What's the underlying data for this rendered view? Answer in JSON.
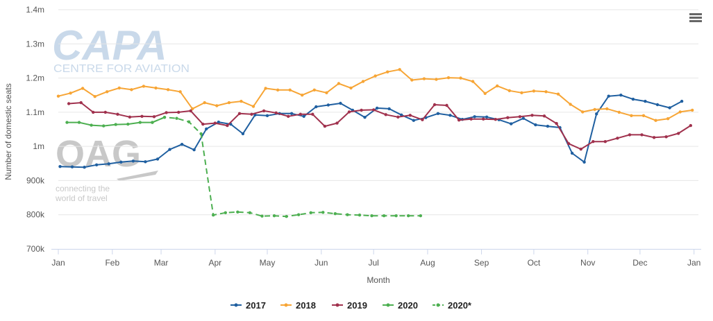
{
  "menu_icon": "hamburger-menu-icon",
  "watermarks": {
    "capa": {
      "logo": "CAPA",
      "subtitle": "CENTRE FOR AVIATION",
      "color": "#c9d9ea"
    },
    "oag": {
      "logo": "OAG",
      "tagline_1": "connecting the",
      "tagline_2": "world of travel",
      "color": "#c8c8c8"
    }
  },
  "chart_data": {
    "type": "line",
    "title": "",
    "xlabel": "Month",
    "ylabel": "Number of domestic seats",
    "x_domain": [
      0,
      52.5
    ],
    "ylim": [
      700000,
      1400000
    ],
    "y_ticks": [
      {
        "value": 700000,
        "label": "700k"
      },
      {
        "value": 800000,
        "label": "800k"
      },
      {
        "value": 900000,
        "label": "900k"
      },
      {
        "value": 1000000,
        "label": "1m"
      },
      {
        "value": 1100000,
        "label": "1.1m"
      },
      {
        "value": 1200000,
        "label": "1.2m"
      },
      {
        "value": 1300000,
        "label": "1.3m"
      },
      {
        "value": 1400000,
        "label": "1.4m"
      }
    ],
    "x_ticks": [
      {
        "value": 0,
        "label": "Jan"
      },
      {
        "value": 4.43,
        "label": "Feb"
      },
      {
        "value": 8.43,
        "label": "Mar"
      },
      {
        "value": 12.86,
        "label": "Apr"
      },
      {
        "value": 17.14,
        "label": "May"
      },
      {
        "value": 21.57,
        "label": "Jun"
      },
      {
        "value": 25.86,
        "label": "Jul"
      },
      {
        "value": 30.29,
        "label": "Aug"
      },
      {
        "value": 34.71,
        "label": "Sep"
      },
      {
        "value": 39,
        "label": "Oct"
      },
      {
        "value": 43.43,
        "label": "Nov"
      },
      {
        "value": 47.71,
        "label": "Dec"
      },
      {
        "value": 52.14,
        "label": "Jan"
      }
    ],
    "grid": true,
    "legend_position": "bottom-center",
    "series": [
      {
        "name": "2017",
        "color": "#1f5fa0",
        "dashed": false,
        "x": [
          0.14,
          1.14,
          2.14,
          3.14,
          4.14,
          5.14,
          6.14,
          7.14,
          8.14,
          9.14,
          10.14,
          11.14,
          12.14,
          13.14,
          14.14,
          15.14,
          16.14,
          17.14,
          18.14,
          19.14,
          20.14,
          21.14,
          22.14,
          23.14,
          24.14,
          25.14,
          26.14,
          27.14,
          28.14,
          29.14,
          30.14,
          31.14,
          32.14,
          33.14,
          34.14,
          35.14,
          36.14,
          37.14,
          38.14,
          39.14,
          40.14,
          41.14,
          42.14,
          43.14,
          44.14,
          45.14,
          46.14,
          47.14,
          48.14,
          49.14,
          50.14,
          51.14
        ],
        "values": [
          941000,
          940000,
          939000,
          946000,
          949000,
          954000,
          957000,
          955000,
          963000,
          991000,
          1006000,
          990000,
          1051000,
          1071000,
          1065000,
          1037000,
          1092000,
          1090000,
          1096000,
          1096000,
          1088000,
          1116000,
          1121000,
          1126000,
          1106000,
          1085000,
          1112000,
          1110000,
          1092000,
          1076000,
          1084000,
          1096000,
          1091000,
          1079000,
          1087000,
          1086000,
          1078000,
          1066000,
          1082000,
          1063000,
          1059000,
          1055000,
          980000,
          954000,
          1095000,
          1147000,
          1150000,
          1138000,
          1132000,
          1122000,
          1113000,
          1132000
        ]
      },
      {
        "name": "2018",
        "color": "#f7a535",
        "dashed": false,
        "x": [
          0,
          1,
          2,
          3,
          4,
          5,
          6,
          7,
          8,
          9,
          10,
          11,
          12,
          13,
          14,
          15,
          16,
          17,
          18,
          19,
          20,
          21,
          22,
          23,
          24,
          25,
          26,
          27,
          28,
          29,
          30,
          31,
          32,
          33,
          34,
          35,
          36,
          37,
          38,
          39,
          40,
          41,
          42,
          43,
          44,
          45,
          46,
          47,
          48,
          49,
          50,
          51,
          52
        ],
        "values": [
          1147000,
          1156000,
          1170000,
          1146000,
          1160000,
          1171000,
          1166000,
          1176000,
          1171000,
          1166000,
          1160000,
          1110000,
          1128000,
          1119000,
          1128000,
          1132000,
          1117000,
          1170000,
          1165000,
          1165000,
          1150000,
          1165000,
          1157000,
          1184000,
          1171000,
          1190000,
          1206000,
          1218000,
          1225000,
          1194000,
          1198000,
          1196000,
          1201000,
          1200000,
          1190000,
          1155000,
          1177000,
          1163000,
          1157000,
          1162000,
          1160000,
          1153000,
          1123000,
          1101000,
          1108000,
          1110000,
          1100000,
          1090000,
          1090000,
          1076000,
          1081000,
          1101000,
          1106000
        ]
      },
      {
        "name": "2019",
        "color": "#a0314d",
        "dashed": false,
        "x": [
          0.86,
          1.86,
          2.86,
          3.86,
          4.86,
          5.86,
          6.86,
          7.86,
          8.86,
          9.86,
          10.86,
          11.86,
          12.86,
          13.86,
          14.86,
          15.86,
          16.86,
          17.86,
          18.86,
          19.86,
          20.86,
          21.86,
          22.86,
          23.86,
          24.86,
          25.86,
          26.86,
          27.86,
          28.86,
          29.86,
          30.86,
          31.86,
          32.86,
          33.86,
          34.86,
          35.86,
          36.86,
          37.86,
          38.86,
          39.86,
          40.86,
          41.86,
          42.86,
          43.86,
          44.86,
          45.86,
          46.86,
          47.86,
          48.86,
          49.86,
          50.86,
          51.86
        ],
        "values": [
          1125000,
          1128000,
          1100000,
          1100000,
          1094000,
          1086000,
          1088000,
          1087000,
          1099000,
          1100000,
          1104000,
          1065000,
          1068000,
          1061000,
          1096000,
          1094000,
          1104000,
          1098000,
          1088000,
          1094000,
          1094000,
          1059000,
          1068000,
          1101000,
          1106000,
          1107000,
          1093000,
          1086000,
          1091000,
          1078000,
          1122000,
          1120000,
          1077000,
          1080000,
          1080000,
          1079000,
          1084000,
          1087000,
          1091000,
          1089000,
          1067000,
          1008000,
          992000,
          1014000,
          1014000,
          1024000,
          1034000,
          1034000,
          1026000,
          1028000,
          1038000,
          1061000
        ]
      },
      {
        "name": "2020",
        "color": "#4caf50",
        "dashed": false,
        "x": [
          0.71,
          1.71,
          2.71,
          3.71,
          4.71,
          5.71,
          6.71,
          7.71,
          8.71
        ],
        "values": [
          1070000,
          1070000,
          1062000,
          1060000,
          1064000,
          1065000,
          1070000,
          1070000,
          1085000
        ]
      },
      {
        "name": "2020*",
        "color": "#4caf50",
        "dashed": true,
        "x": [
          7.71,
          8.71,
          9.71,
          10.71,
          11.71,
          12.71,
          13.71,
          14.71,
          15.71,
          16.71,
          17.71,
          18.71,
          19.71,
          20.71,
          21.71,
          22.71,
          23.71,
          24.71,
          25.71,
          26.71,
          27.71,
          28.71,
          29.71
        ],
        "values": [
          1070000,
          1085000,
          1082000,
          1072000,
          1037000,
          799000,
          806000,
          808000,
          806000,
          796000,
          797000,
          795000,
          800000,
          806000,
          807000,
          803000,
          800000,
          799000,
          797000,
          797000,
          797000,
          797000,
          797000
        ]
      }
    ]
  }
}
